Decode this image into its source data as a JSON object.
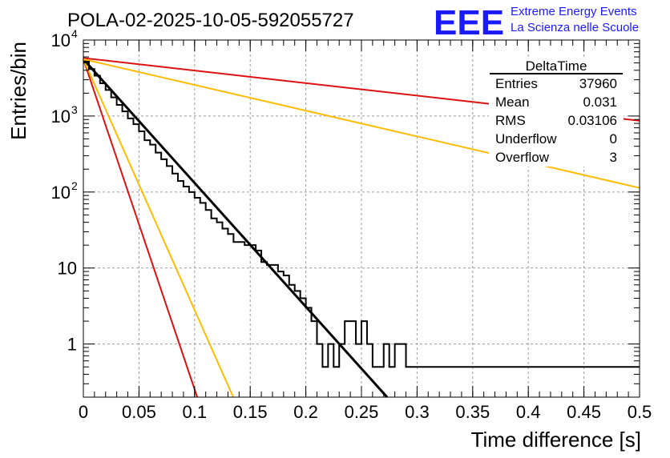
{
  "title": "POLA-02-2025-10-05-592055727",
  "logo": {
    "text": "EEE",
    "line1": "Extreme Energy Events",
    "line2": "La Scienza nelle Scuole",
    "color": "#1a1aff"
  },
  "stats": {
    "name": "DeltaTime",
    "rows": [
      {
        "label": "Entries",
        "value": "37960"
      },
      {
        "label": "Mean",
        "value": "0.031"
      },
      {
        "label": "RMS",
        "value": "0.03106"
      },
      {
        "label": "Underflow",
        "value": "0"
      },
      {
        "label": "Overflow",
        "value": "3"
      }
    ]
  },
  "chart_data": {
    "type": "histogram",
    "xlabel": "Time difference [s]",
    "ylabel": "Entries/bin",
    "xlim": [
      0,
      0.5
    ],
    "ylim": [
      0.2,
      10000
    ],
    "yscale": "log",
    "grid": true,
    "x_ticks": [
      "0",
      "0.05",
      "0.1",
      "0.15",
      "0.2",
      "0.25",
      "0.3",
      "0.35",
      "0.4",
      "0.45",
      "0.5"
    ],
    "y_ticks": [
      {
        "value": 1,
        "label": "1"
      },
      {
        "value": 10,
        "label": "10"
      },
      {
        "value": 100,
        "label": "10",
        "exp": "2"
      },
      {
        "value": 1000,
        "label": "10",
        "exp": "3"
      },
      {
        "value": 10000,
        "label": "10",
        "exp": "4"
      }
    ],
    "bin_width": 0.005,
    "histogram_counts": [
      5200,
      4150,
      3400,
      2700,
      2200,
      1760,
      1400,
      1150,
      930,
      780,
      630,
      480,
      420,
      330,
      270,
      220,
      175,
      140,
      118,
      100,
      84,
      72,
      58,
      45,
      40,
      33,
      28,
      22,
      22,
      20,
      20,
      17,
      12,
      11,
      11,
      9,
      8,
      6,
      5,
      4,
      3,
      2,
      1,
      0.5,
      1,
      0.5,
      1,
      2,
      2,
      1,
      2,
      1,
      0.5,
      0.5,
      1,
      0.5,
      1,
      1,
      0.5,
      0.5,
      0.5,
      0.5,
      0.5,
      0.5,
      0.5,
      0.5,
      0.5,
      0.5,
      0.5,
      0.5,
      0.5,
      0.5,
      0.5,
      0.5,
      0.5,
      0.5,
      0.5,
      0.5,
      0.5,
      0.5,
      0.5,
      0.5,
      0.5,
      0.5,
      0.5,
      0.5,
      0.5,
      0.5,
      0.5,
      0.5,
      0.5,
      0.5,
      0.5,
      0.5,
      0.5,
      0.5,
      0.5,
      0.5,
      0.5,
      0.5
    ],
    "fits": [
      {
        "name": "data fit",
        "color": "#000000",
        "amplitude": 5600,
        "slope": -37.5,
        "x_range": [
          0,
          0.5
        ]
      },
      {
        "name": "red steep",
        "color": "#dd1111",
        "amplitude": 5600,
        "slope": -100,
        "x_range": [
          0,
          0.109
        ]
      },
      {
        "name": "yellow steep",
        "color": "#ffbb00",
        "amplitude": 5600,
        "slope": -76,
        "x_range": [
          0,
          0.5
        ]
      },
      {
        "name": "red shallow",
        "color": "#dd1111",
        "amplitude": 5800,
        "slope": -3.8,
        "x_range": [
          0,
          0.5
        ]
      },
      {
        "name": "yellow shallow",
        "color": "#ffbb00",
        "amplitude": 5600,
        "slope": -7.8,
        "x_range": [
          0,
          0.5
        ]
      }
    ]
  }
}
